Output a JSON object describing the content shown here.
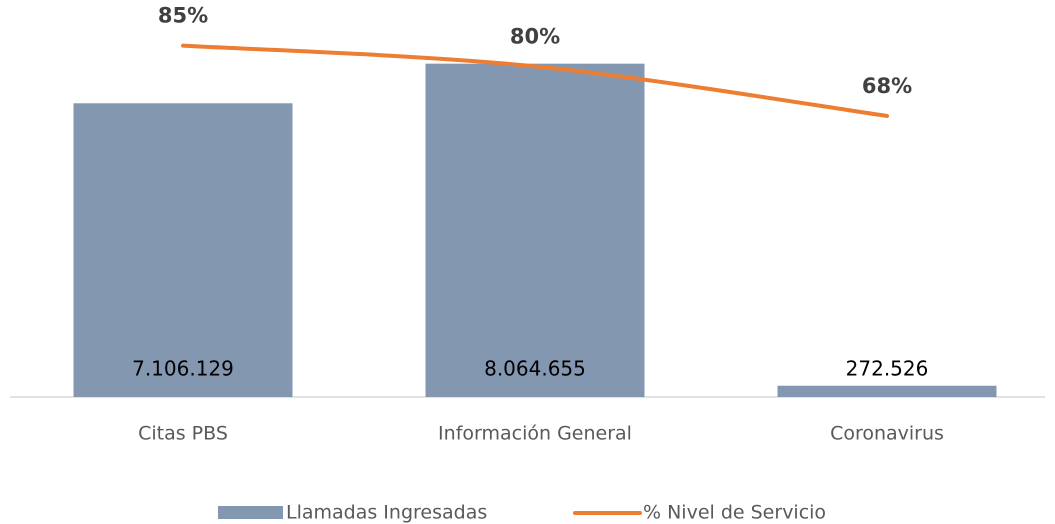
{
  "chart_data": {
    "type": "bar",
    "categories": [
      "Citas PBS",
      "Información General",
      "Coronavirus"
    ],
    "series": [
      {
        "name": "Llamadas Ingresadas",
        "type": "bar",
        "color": "#8497b0",
        "values": [
          7106129,
          8064655,
          272526
        ],
        "value_labels": [
          "7.106.129",
          "8.064.655",
          "272.526"
        ]
      },
      {
        "name": "% Nivel de Servicio",
        "type": "line",
        "axis": "y2",
        "color": "#ed7d31",
        "values": [
          85,
          80,
          68
        ],
        "value_labels": [
          "85%",
          "80%",
          "68%"
        ]
      }
    ],
    "ylim": [
      0,
      9000000
    ],
    "y2lim": [
      0,
      90
    ]
  }
}
